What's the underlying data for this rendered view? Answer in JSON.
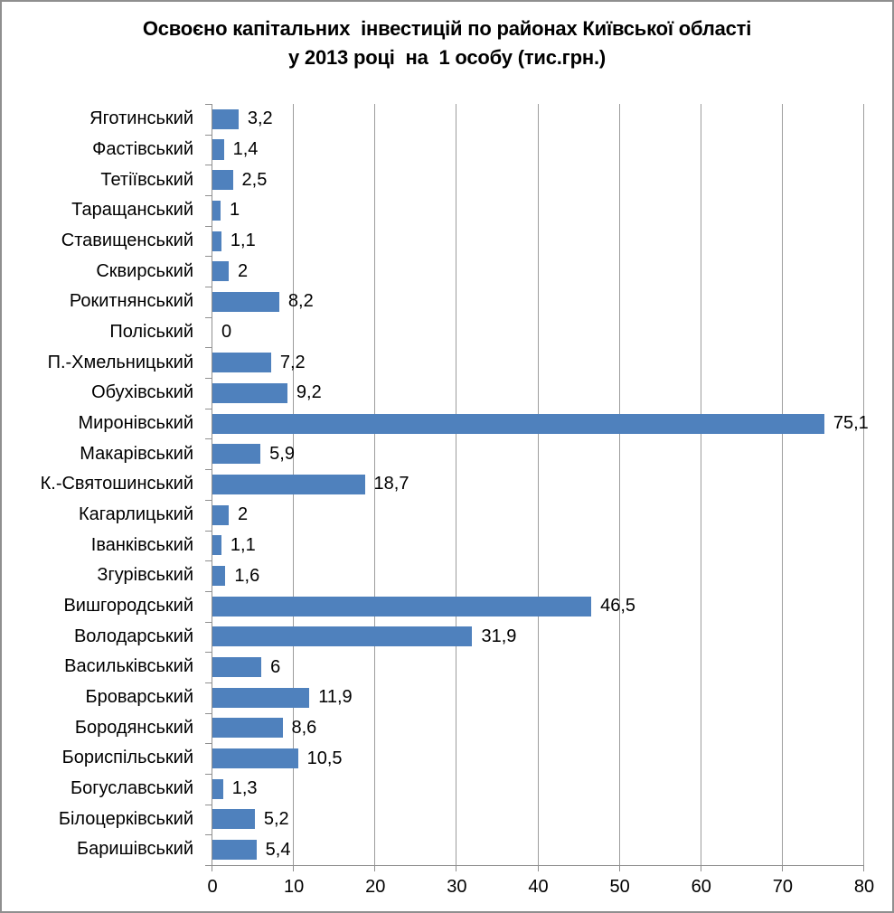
{
  "chart_data": {
    "type": "bar",
    "orientation": "horizontal",
    "title": "Освоєно капітальних  інвестицій по районах Київської області\nу 2013 році  на  1 особу (тис.грн.)",
    "categories": [
      "Яготинський",
      "Фастівський",
      "Тетіївський",
      "Таращанський",
      "Ставищенський",
      "Сквирський",
      "Рокитнянський",
      "Поліський",
      "П.-Хмельницький",
      "Обухівський",
      "Миронівський",
      "Макарівський",
      "К.-Святошинський",
      "Кагарлицький",
      "Іванківський",
      "Згурівський",
      "Вишгородський",
      "Володарський",
      "Васильківський",
      "Броварський",
      "Бородянський",
      "Бориспільський",
      "Богуславський",
      "Білоцерківський",
      "Баришівський"
    ],
    "values": [
      3.2,
      1.4,
      2.5,
      1,
      1.1,
      2,
      8.2,
      0,
      7.2,
      9.2,
      75.1,
      5.9,
      18.7,
      2,
      1.1,
      1.6,
      46.5,
      31.9,
      6,
      11.9,
      8.6,
      10.5,
      1.3,
      5.2,
      5.4
    ],
    "value_labels": [
      "3,2",
      "1,4",
      "2,5",
      "1",
      "1,1",
      "2",
      "8,2",
      "0",
      "7,2",
      "9,2",
      "75,1",
      "5,9",
      "18,7",
      "2",
      "1,1",
      "1,6",
      "46,5",
      "31,9",
      "6",
      "11,9",
      "8,6",
      "10,5",
      "1,3",
      "5,2",
      "5,4"
    ],
    "xlabel": "",
    "ylabel": "",
    "xlim": [
      0,
      80
    ],
    "xticks": [
      0,
      10,
      20,
      30,
      40,
      50,
      60,
      70,
      80
    ],
    "xtick_labels": [
      "0",
      "10",
      "20",
      "30",
      "40",
      "50",
      "60",
      "70",
      "80"
    ],
    "grid": "vertical-major",
    "legend": "none",
    "bar_color": "#4f81bd",
    "gridline_color": "#9d9d9d",
    "axis_color": "#8f8f8f",
    "text_color": "#000000"
  }
}
